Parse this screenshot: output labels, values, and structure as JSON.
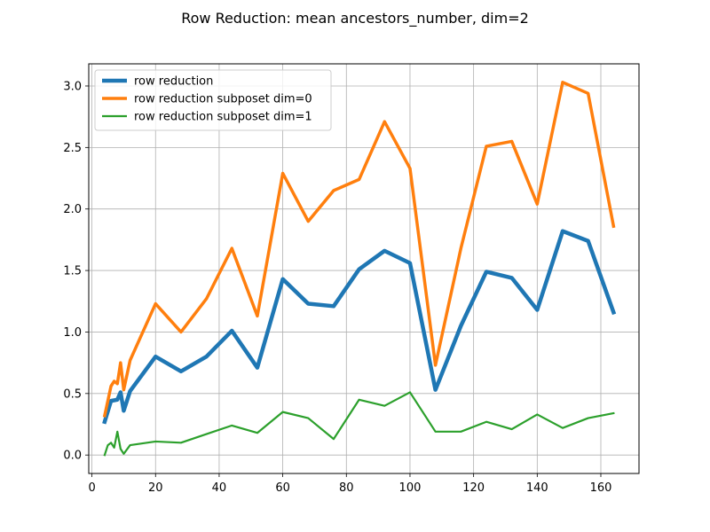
{
  "chart_data": {
    "type": "line",
    "title": "Row Reduction: mean ancestors_number, dim=2",
    "xlabel": "",
    "ylabel": "",
    "xlim": [
      -1.0,
      172.0
    ],
    "ylim": [
      -0.15,
      3.18
    ],
    "xticks": [
      0,
      20,
      40,
      60,
      80,
      100,
      120,
      140,
      160
    ],
    "yticks": [
      0.0,
      0.5,
      1.0,
      1.5,
      2.0,
      2.5,
      3.0
    ],
    "xtick_labels": [
      "0",
      "20",
      "40",
      "60",
      "80",
      "100",
      "120",
      "140",
      "160"
    ],
    "ytick_labels": [
      "0.0",
      "0.5",
      "1.0",
      "1.5",
      "2.0",
      "2.5",
      "3.0"
    ],
    "grid": true,
    "legend_position": "upper-left",
    "series": [
      {
        "name": "row reduction",
        "color": "#1f77b4",
        "x": [
          4,
          6,
          8,
          9,
          10,
          12,
          20,
          28,
          36,
          44,
          52,
          60,
          68,
          76,
          84,
          92,
          100,
          108,
          116,
          124,
          132,
          140,
          148,
          156,
          164
        ],
        "y": [
          0.27,
          0.44,
          0.45,
          0.51,
          0.36,
          0.52,
          0.8,
          0.68,
          0.8,
          1.01,
          0.71,
          1.43,
          1.23,
          1.21,
          1.51,
          1.66,
          1.56,
          0.53,
          1.05,
          1.49,
          1.44,
          1.18,
          1.82,
          1.74,
          1.16
        ]
      },
      {
        "name": "row reduction subposet dim=0",
        "color": "#ff7f0e",
        "x": [
          4,
          6,
          7,
          8,
          9,
          10,
          12,
          20,
          28,
          36,
          44,
          52,
          60,
          68,
          76,
          84,
          92,
          100,
          108,
          116,
          124,
          132,
          140,
          148,
          156,
          164
        ],
        "y": [
          0.32,
          0.56,
          0.6,
          0.58,
          0.75,
          0.53,
          0.77,
          1.23,
          1.0,
          1.27,
          1.68,
          1.13,
          2.29,
          1.9,
          2.15,
          2.24,
          2.71,
          2.33,
          0.73,
          1.68,
          2.51,
          2.55,
          2.04,
          3.03,
          2.94,
          1.86
        ]
      },
      {
        "name": "row reduction subposet dim=1",
        "color": "#2ca02c",
        "x": [
          4,
          5,
          6,
          7,
          8,
          9,
          10,
          12,
          20,
          28,
          36,
          44,
          52,
          60,
          68,
          76,
          84,
          92,
          100,
          108,
          116,
          124,
          132,
          140,
          148,
          156,
          164
        ],
        "y": [
          0.0,
          0.08,
          0.1,
          0.06,
          0.19,
          0.05,
          0.01,
          0.08,
          0.11,
          0.1,
          0.17,
          0.24,
          0.18,
          0.35,
          0.3,
          0.13,
          0.45,
          0.4,
          0.51,
          0.19,
          0.19,
          0.27,
          0.21,
          0.33,
          0.22,
          0.3,
          0.34
        ]
      }
    ]
  }
}
